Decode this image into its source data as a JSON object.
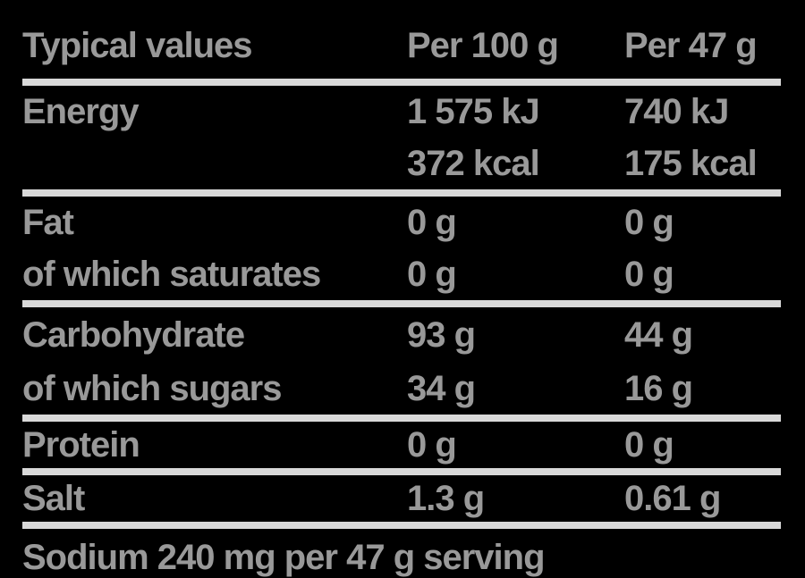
{
  "colors": {
    "background": "#000000",
    "text": "#999999",
    "divider": "#d9d9d9"
  },
  "table": {
    "header": {
      "col1": "Typical values",
      "col2": "Per 100 g",
      "col3": "Per 47 g"
    },
    "rows": [
      {
        "label": "Energy",
        "per100": "1 575 kJ",
        "per47": "740 kJ",
        "divider_after": false
      },
      {
        "label": "",
        "per100": "372 kcal",
        "per47": "175 kcal",
        "divider_after": true
      },
      {
        "label": "Fat",
        "per100": "0 g",
        "per47": "0 g",
        "divider_after": false
      },
      {
        "label": "of which saturates",
        "per100": "0 g",
        "per47": "0 g",
        "divider_after": true
      },
      {
        "label": "Carbohydrate",
        "per100": "93 g",
        "per47": "44 g",
        "divider_after": false
      },
      {
        "label": "of which sugars",
        "per100": "34 g",
        "per47": "16 g",
        "divider_after": true
      },
      {
        "label": "Protein",
        "per100": "0 g",
        "per47": "0 g",
        "divider_after": true
      },
      {
        "label": "Salt",
        "per100": "1.3 g",
        "per47": "0.61 g",
        "divider_after": true
      }
    ],
    "footnote": "Sodium 240 mg per 47 g serving"
  }
}
